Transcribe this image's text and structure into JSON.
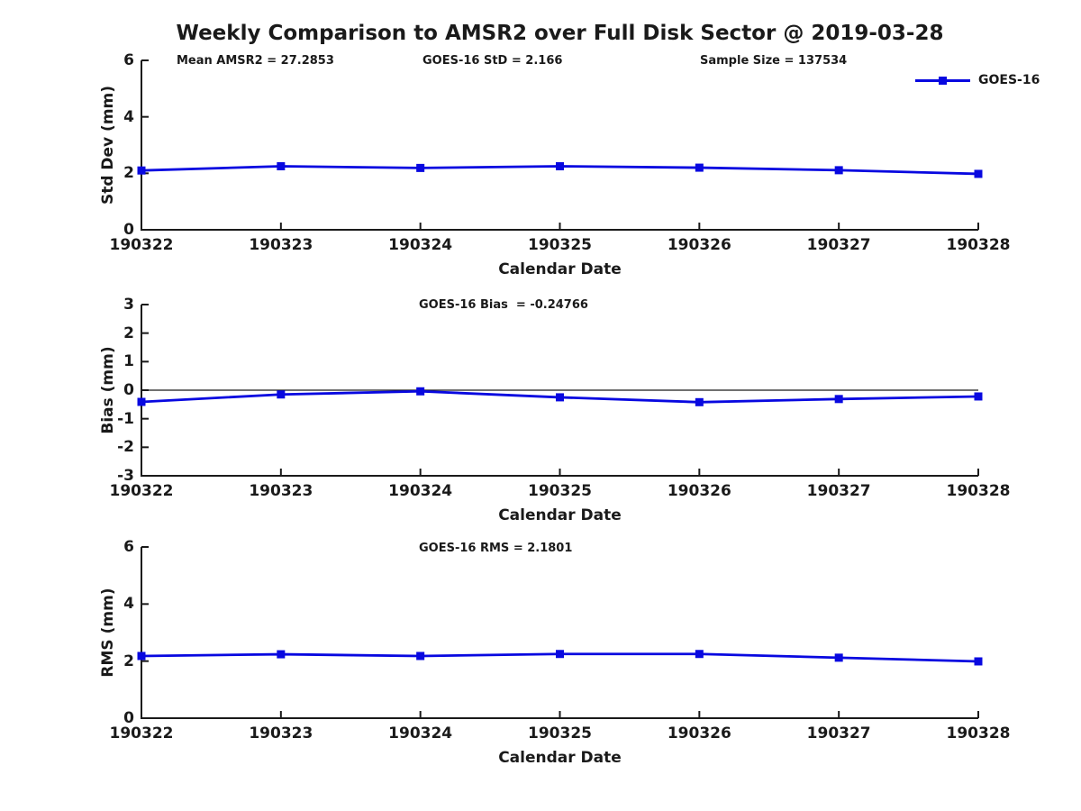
{
  "figure": {
    "title": "Weekly Comparison to AMSR2 over Full Disk Sector @ 2019-03-28",
    "line_color": "#0808e0",
    "axis_color": "#1a1a1a",
    "background": "#ffffff"
  },
  "legend": {
    "label": "GOES-16"
  },
  "chart_data": [
    {
      "type": "line",
      "categories": [
        "190322",
        "190323",
        "190324",
        "190325",
        "190326",
        "190327",
        "190328"
      ],
      "series": [
        {
          "name": "GOES-16",
          "values": [
            2.1,
            2.25,
            2.19,
            2.25,
            2.2,
            2.11,
            1.98
          ]
        }
      ],
      "annotations": [
        "Mean AMSR2 = 27.2853",
        "GOES-16 StD = 2.166",
        "Sample Size = 137534"
      ],
      "xlabel": "Calendar Date",
      "ylabel": "Std Dev (mm)",
      "ylim": [
        0,
        6
      ],
      "yticks": [
        0,
        2,
        4,
        6
      ],
      "zero_line": false,
      "grid": false,
      "marker": "square"
    },
    {
      "type": "line",
      "categories": [
        "190322",
        "190323",
        "190324",
        "190325",
        "190326",
        "190327",
        "190328"
      ],
      "series": [
        {
          "name": "GOES-16",
          "values": [
            -0.41,
            -0.15,
            -0.04,
            -0.25,
            -0.42,
            -0.31,
            -0.22
          ]
        }
      ],
      "annotations": [
        "GOES-16 Bias  = -0.24766"
      ],
      "xlabel": "Calendar Date",
      "ylabel": "Bias (mm)",
      "ylim": [
        -3,
        3
      ],
      "yticks": [
        -3,
        -2,
        -1,
        0,
        1,
        2,
        3
      ],
      "zero_line": true,
      "grid": false,
      "marker": "square"
    },
    {
      "type": "line",
      "categories": [
        "190322",
        "190323",
        "190324",
        "190325",
        "190326",
        "190327",
        "190328"
      ],
      "series": [
        {
          "name": "GOES-16",
          "values": [
            2.18,
            2.24,
            2.18,
            2.25,
            2.25,
            2.12,
            1.99
          ]
        }
      ],
      "annotations": [
        "GOES-16 RMS = 2.1801"
      ],
      "xlabel": "Calendar Date",
      "ylabel": "RMS (mm)",
      "ylim": [
        0,
        6
      ],
      "yticks": [
        0,
        2,
        4,
        6
      ],
      "zero_line": false,
      "grid": false,
      "marker": "square"
    }
  ]
}
